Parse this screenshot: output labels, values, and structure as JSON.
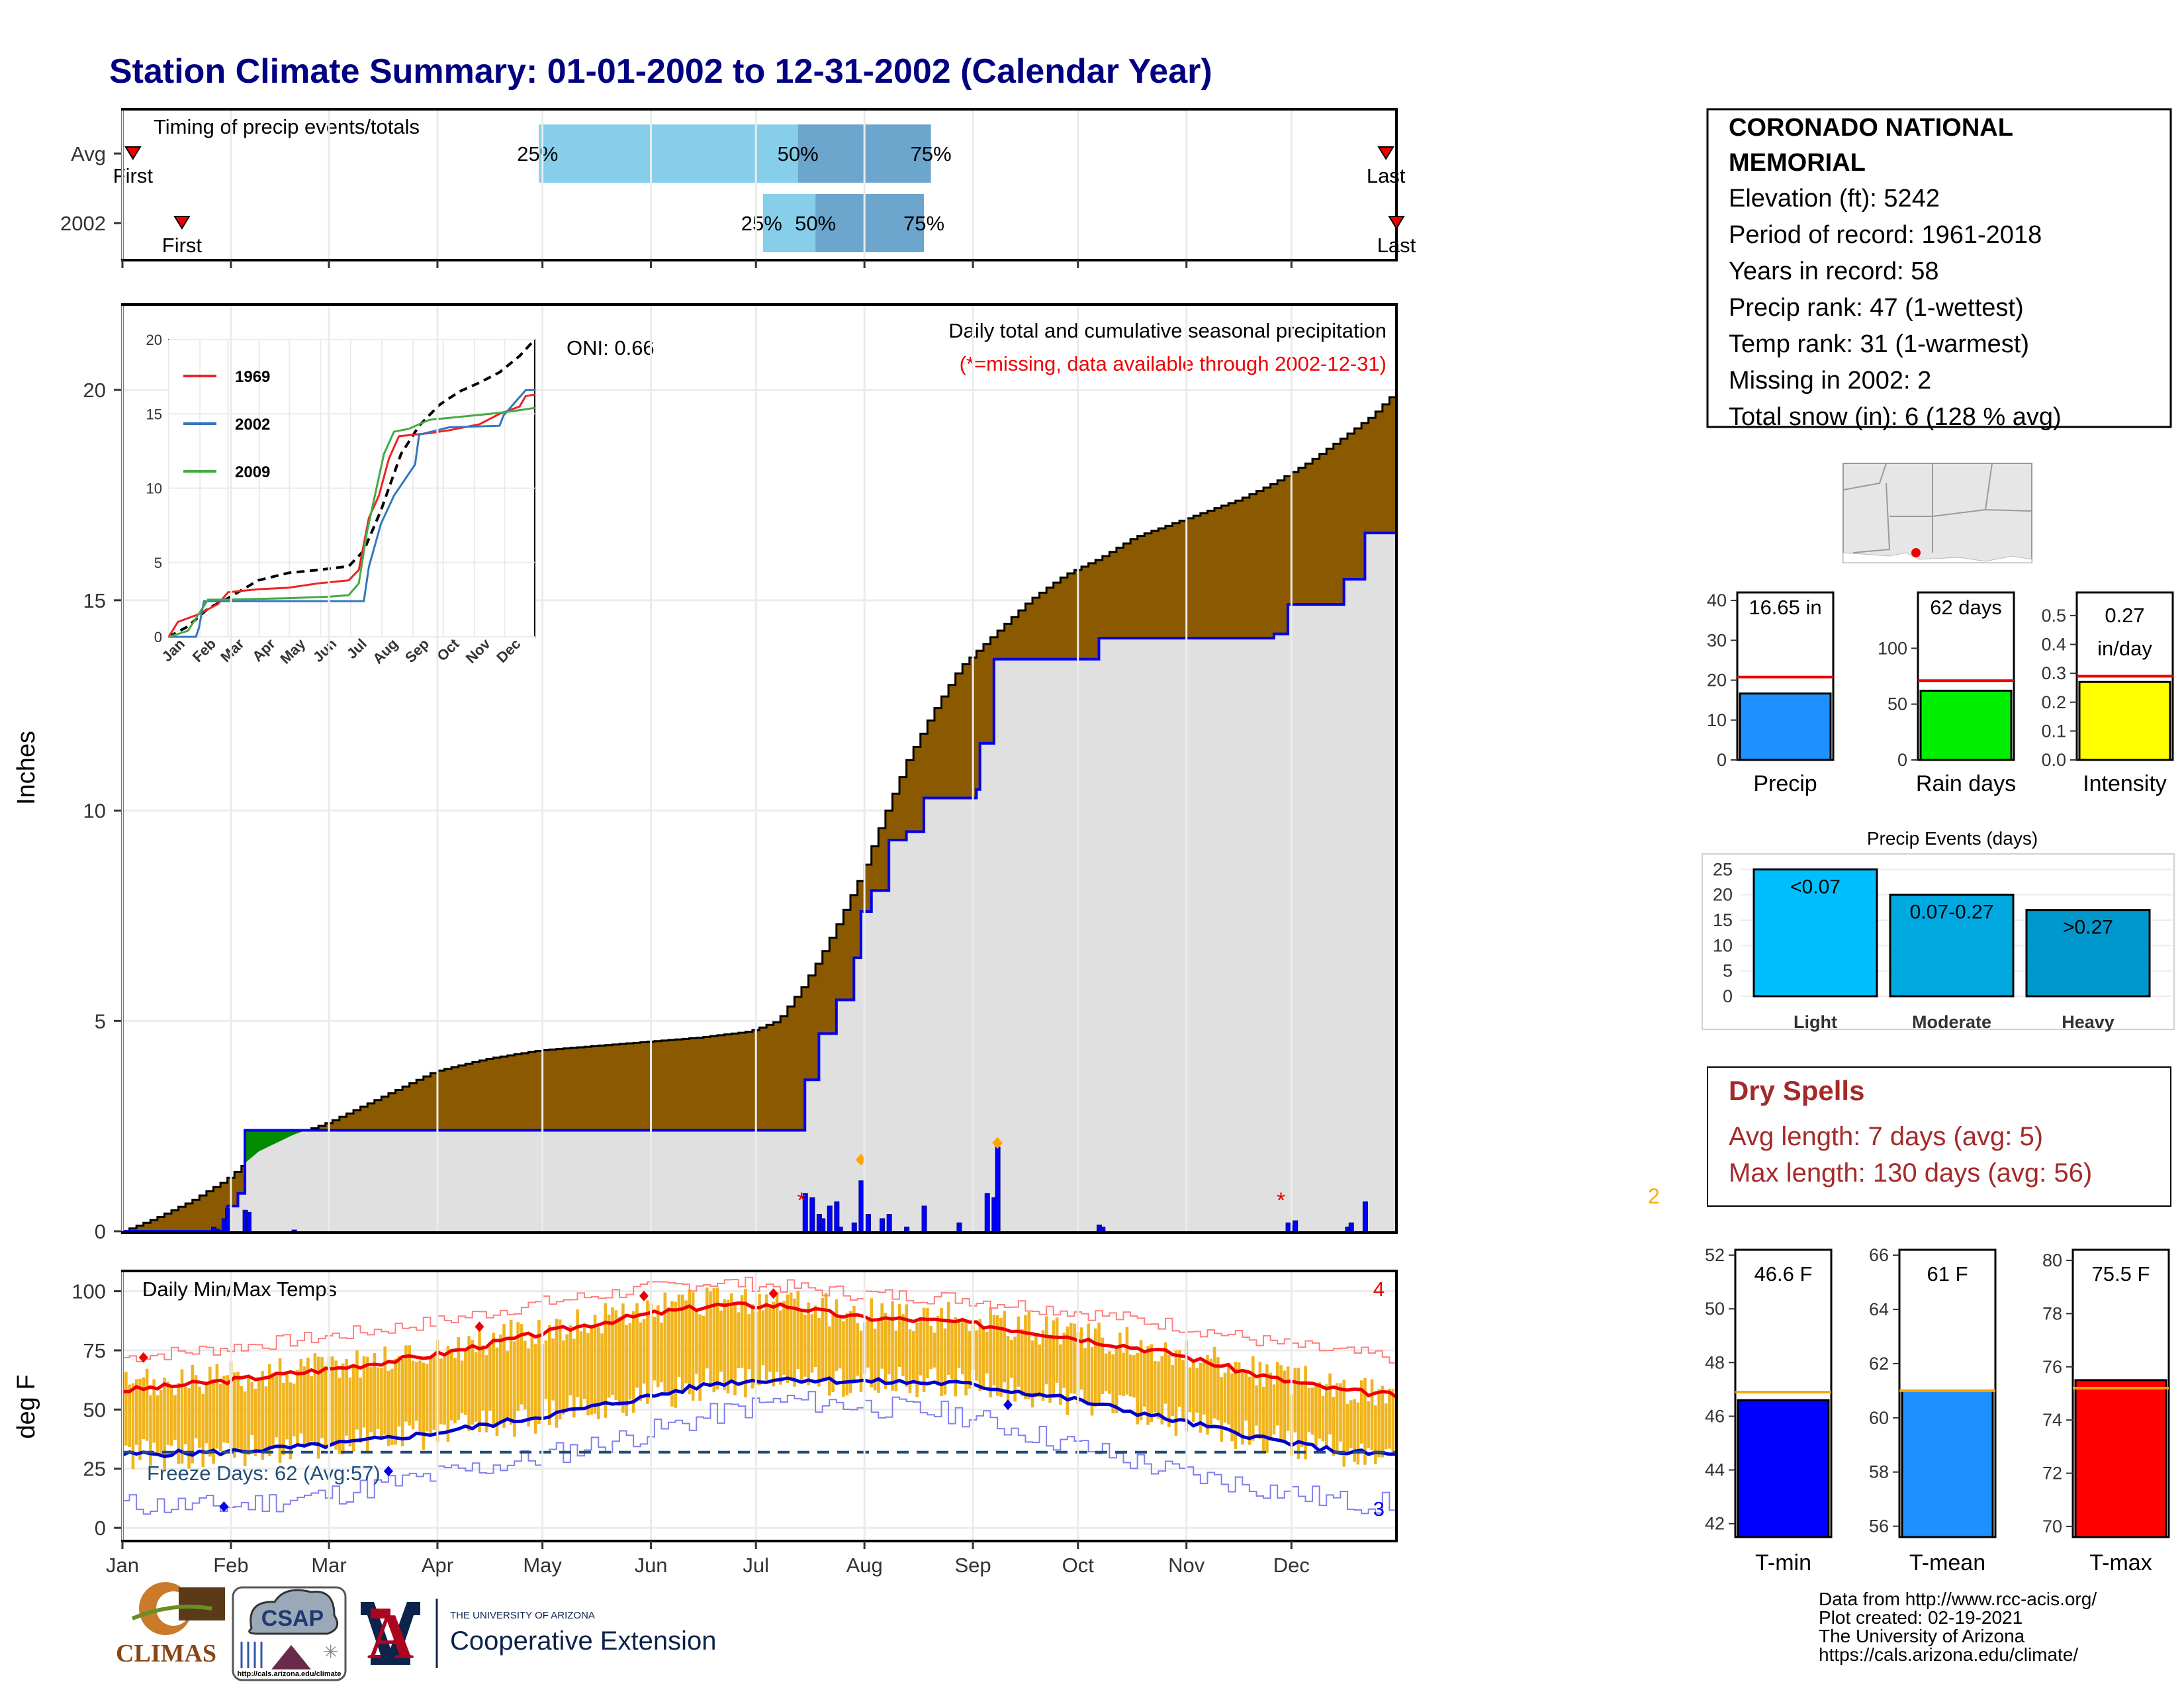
{
  "page": {
    "title": "Station Climate Summary: 01-01-2002 to 12-31-2002 (Calendar Year)"
  },
  "months": [
    "Jan",
    "Feb",
    "Mar",
    "Apr",
    "May",
    "Jun",
    "Jul",
    "Aug",
    "Sep",
    "Oct",
    "Nov",
    "Dec"
  ],
  "timing_panel": {
    "label": "Timing of precip events/totals",
    "rows": [
      {
        "name": "Avg",
        "first_doy": 4,
        "last_doy": 362,
        "p25_doy": 120,
        "p50_doy": 194,
        "p75_doy": 232,
        "labels": {
          "first": "First",
          "last": "Last",
          "p25": "25%",
          "p50": "50%",
          "p75": "75%"
        }
      },
      {
        "name": "2002",
        "first_doy": 18,
        "last_doy": 365,
        "p25_doy": 184,
        "p50_doy": 199,
        "p75_doy": 230,
        "labels": {
          "first": "First",
          "last": "Last",
          "p25": "25%",
          "p50": "50%",
          "p75": "75%"
        }
      }
    ],
    "colors": {
      "light": "#87ceeb",
      "dark": "#6ca6cd",
      "marker": "#ee0000"
    }
  },
  "precip_chart": {
    "type": "area",
    "ylabel": "Inches",
    "ylim": [
      0,
      22
    ],
    "yticks": [
      0,
      5,
      10,
      15,
      20
    ],
    "oni_label": "ONI: 0.66",
    "note_1": "Daily total and cumulative seasonal precipitation",
    "note_2": "(*=missing, data available through 2002-12-31)",
    "missing_markers": [
      {
        "doy": 195,
        "label": "*"
      },
      {
        "doy": 332,
        "label": "*"
      }
    ],
    "missing_count_label": "2",
    "avg_cumulative": [
      [
        1,
        0
      ],
      [
        10,
        0.3
      ],
      [
        20,
        0.7
      ],
      [
        30,
        1.2
      ],
      [
        40,
        1.9
      ],
      [
        50,
        2.3
      ],
      [
        60,
        2.6
      ],
      [
        75,
        3.2
      ],
      [
        90,
        3.8
      ],
      [
        105,
        4.1
      ],
      [
        120,
        4.3
      ],
      [
        135,
        4.4
      ],
      [
        150,
        4.5
      ],
      [
        165,
        4.6
      ],
      [
        180,
        4.75
      ],
      [
        188,
        5.0
      ],
      [
        195,
        5.8
      ],
      [
        200,
        6.5
      ],
      [
        205,
        7.3
      ],
      [
        212,
        8.5
      ],
      [
        218,
        9.8
      ],
      [
        225,
        11.2
      ],
      [
        232,
        12.3
      ],
      [
        240,
        13.4
      ],
      [
        250,
        14.2
      ],
      [
        260,
        15.0
      ],
      [
        270,
        15.6
      ],
      [
        280,
        16.0
      ],
      [
        290,
        16.5
      ],
      [
        300,
        16.8
      ],
      [
        310,
        17.1
      ],
      [
        320,
        17.4
      ],
      [
        330,
        17.8
      ],
      [
        340,
        18.3
      ],
      [
        350,
        18.9
      ],
      [
        358,
        19.4
      ],
      [
        365,
        20.0
      ]
    ],
    "obs_cumulative_2002": [
      [
        1,
        0
      ],
      [
        28,
        0
      ],
      [
        30,
        0.2
      ],
      [
        31,
        0.6
      ],
      [
        34,
        0.9
      ],
      [
        36,
        2.4
      ],
      [
        195,
        2.4
      ],
      [
        196,
        3.6
      ],
      [
        200,
        4.7
      ],
      [
        205,
        5.5
      ],
      [
        210,
        6.5
      ],
      [
        212,
        7.6
      ],
      [
        215,
        8.1
      ],
      [
        220,
        9.3
      ],
      [
        225,
        9.5
      ],
      [
        230,
        10.3
      ],
      [
        245,
        10.5
      ],
      [
        246,
        11.6
      ],
      [
        250,
        13.6
      ],
      [
        280,
        14.1
      ],
      [
        330,
        14.2
      ],
      [
        334,
        14.9
      ],
      [
        350,
        15.5
      ],
      [
        356,
        16.6
      ],
      [
        365,
        16.6
      ]
    ],
    "daily_bars_2002": [
      [
        27,
        0.1
      ],
      [
        28,
        0.05
      ],
      [
        30,
        0.3
      ],
      [
        31,
        0.55
      ],
      [
        36,
        0.5
      ],
      [
        37,
        0.45
      ],
      [
        50,
        0.03
      ],
      [
        196,
        0.9
      ],
      [
        198,
        0.8
      ],
      [
        200,
        0.4
      ],
      [
        201,
        0.3
      ],
      [
        203,
        0.6
      ],
      [
        205,
        0.7
      ],
      [
        206,
        0.1
      ],
      [
        210,
        0.2
      ],
      [
        212,
        1.2
      ],
      [
        214,
        0.4
      ],
      [
        218,
        0.3
      ],
      [
        220,
        0.4
      ],
      [
        225,
        0.1
      ],
      [
        230,
        0.6
      ],
      [
        240,
        0.2
      ],
      [
        248,
        0.9
      ],
      [
        250,
        0.8
      ],
      [
        251,
        2.0
      ],
      [
        280,
        0.15
      ],
      [
        281,
        0.1
      ],
      [
        334,
        0.2
      ],
      [
        335,
        0.15
      ],
      [
        336,
        0.25
      ],
      [
        351,
        0.1
      ],
      [
        352,
        0.2
      ],
      [
        356,
        0.7
      ]
    ],
    "extreme_markers": [
      {
        "doy": 212,
        "value": 1.7
      },
      {
        "doy": 251,
        "value": 2.1
      }
    ],
    "colors": {
      "avg_fill": "#8b5a00",
      "obs_fill": "#e0e0e0",
      "obs_line": "#0000ee",
      "surplus": "#008b00",
      "bars": "#0000ff",
      "diamond": "#ffa500"
    }
  },
  "inset_chart": {
    "type": "line",
    "ylim": [
      0,
      20
    ],
    "yticks": [
      0,
      5,
      10,
      15,
      20
    ],
    "months": [
      "Jan",
      "Feb",
      "Mar",
      "Apr",
      "May",
      "Jun",
      "Jul",
      "Aug",
      "Sep",
      "Oct",
      "Nov",
      "Dec"
    ],
    "series": [
      {
        "name": "1969",
        "color": "#ee2222",
        "points": [
          [
            1,
            0
          ],
          [
            10,
            1.0
          ],
          [
            30,
            1.5
          ],
          [
            50,
            2.2
          ],
          [
            60,
            3.0
          ],
          [
            90,
            3.2
          ],
          [
            120,
            3.3
          ],
          [
            150,
            3.6
          ],
          [
            180,
            3.8
          ],
          [
            190,
            4.5
          ],
          [
            200,
            8.0
          ],
          [
            210,
            9.5
          ],
          [
            220,
            12.0
          ],
          [
            230,
            13.5
          ],
          [
            260,
            13.7
          ],
          [
            280,
            13.9
          ],
          [
            310,
            14.3
          ],
          [
            330,
            15.0
          ],
          [
            350,
            15.5
          ],
          [
            356,
            16.2
          ],
          [
            365,
            16.3
          ]
        ]
      },
      {
        "name": "2002",
        "color": "#3377bb",
        "points": [
          [
            1,
            0
          ],
          [
            28,
            0
          ],
          [
            31,
            0.6
          ],
          [
            36,
            2.4
          ],
          [
            195,
            2.4
          ],
          [
            200,
            4.7
          ],
          [
            212,
            7.6
          ],
          [
            225,
            9.5
          ],
          [
            246,
            11.6
          ],
          [
            250,
            13.6
          ],
          [
            280,
            14.1
          ],
          [
            330,
            14.2
          ],
          [
            334,
            14.9
          ],
          [
            356,
            16.6
          ],
          [
            365,
            16.6
          ]
        ]
      },
      {
        "name": "2009",
        "color": "#44aa44",
        "points": [
          [
            1,
            0
          ],
          [
            20,
            0.4
          ],
          [
            40,
            2.5
          ],
          [
            60,
            2.5
          ],
          [
            120,
            2.6
          ],
          [
            160,
            2.7
          ],
          [
            180,
            2.8
          ],
          [
            190,
            3.6
          ],
          [
            198,
            7.0
          ],
          [
            205,
            9.2
          ],
          [
            215,
            12.3
          ],
          [
            225,
            13.8
          ],
          [
            240,
            14.0
          ],
          [
            260,
            14.6
          ],
          [
            290,
            14.8
          ],
          [
            320,
            15.0
          ],
          [
            345,
            15.2
          ],
          [
            365,
            15.4
          ]
        ]
      }
    ],
    "avg_series": [
      [
        1,
        0
      ],
      [
        20,
        0.7
      ],
      [
        40,
        1.9
      ],
      [
        60,
        2.6
      ],
      [
        90,
        3.8
      ],
      [
        120,
        4.3
      ],
      [
        150,
        4.5
      ],
      [
        180,
        4.75
      ],
      [
        195,
        5.8
      ],
      [
        212,
        8.5
      ],
      [
        232,
        12.3
      ],
      [
        250,
        14.2
      ],
      [
        270,
        15.6
      ],
      [
        290,
        16.5
      ],
      [
        310,
        17.1
      ],
      [
        330,
        17.8
      ],
      [
        350,
        18.9
      ],
      [
        365,
        20.0
      ]
    ]
  },
  "temp_chart": {
    "type": "area",
    "title": "Daily Min/Max Temps",
    "ylabel": "deg F",
    "ylim": [
      -5,
      108
    ],
    "yticks": [
      0,
      25,
      50,
      75,
      100
    ],
    "freeze_line": 32,
    "freeze_label": "Freeze Days: 62 (Avg:57)",
    "hot_count_label": "4",
    "cold_count_label": "3",
    "avg_tmax": [
      [
        1,
        58
      ],
      [
        30,
        62
      ],
      [
        60,
        67
      ],
      [
        90,
        73
      ],
      [
        120,
        82
      ],
      [
        150,
        90
      ],
      [
        170,
        94
      ],
      [
        190,
        94
      ],
      [
        210,
        89
      ],
      [
        240,
        87
      ],
      [
        270,
        81
      ],
      [
        300,
        74
      ],
      [
        330,
        63
      ],
      [
        350,
        58
      ],
      [
        365,
        56
      ]
    ],
    "avg_tmin": [
      [
        1,
        31
      ],
      [
        30,
        32
      ],
      [
        60,
        35
      ],
      [
        90,
        40
      ],
      [
        120,
        47
      ],
      [
        150,
        55
      ],
      [
        170,
        61
      ],
      [
        190,
        63
      ],
      [
        210,
        62
      ],
      [
        240,
        61
      ],
      [
        270,
        55
      ],
      [
        300,
        46
      ],
      [
        330,
        37
      ],
      [
        350,
        32
      ],
      [
        365,
        31
      ]
    ],
    "record_max": [
      [
        1,
        72
      ],
      [
        30,
        76
      ],
      [
        60,
        81
      ],
      [
        90,
        87
      ],
      [
        120,
        95
      ],
      [
        150,
        101
      ],
      [
        170,
        104
      ],
      [
        190,
        102
      ],
      [
        210,
        99
      ],
      [
        240,
        97
      ],
      [
        270,
        92
      ],
      [
        300,
        86
      ],
      [
        330,
        78
      ],
      [
        350,
        74
      ],
      [
        365,
        72
      ]
    ],
    "record_min": [
      [
        1,
        10
      ],
      [
        30,
        9
      ],
      [
        60,
        14
      ],
      [
        90,
        22
      ],
      [
        120,
        30
      ],
      [
        150,
        40
      ],
      [
        170,
        48
      ],
      [
        190,
        54
      ],
      [
        210,
        52
      ],
      [
        240,
        48
      ],
      [
        270,
        36
      ],
      [
        300,
        24
      ],
      [
        330,
        16
      ],
      [
        350,
        11
      ],
      [
        365,
        10
      ]
    ],
    "hot_markers": [
      [
        7,
        72
      ],
      [
        103,
        85
      ],
      [
        150,
        98
      ],
      [
        187,
        99
      ]
    ],
    "cold_markers": [
      [
        30,
        9
      ],
      [
        77,
        24
      ],
      [
        254,
        52
      ]
    ],
    "colors": {
      "bars": "#f0b41e",
      "tmax": "#ee0000",
      "tmin": "#0000cc",
      "rec_max": "#ff8080",
      "rec_min": "#8080ee",
      "freeze": "#1f4e79"
    }
  },
  "station_info": {
    "name": "CORONADO NATIONAL MEMORIAL",
    "lines": [
      "Elevation (ft): 5242",
      "Period of record: 1961-2018",
      "Years in record: 58",
      "Precip rank: 47 (1-wettest)",
      "Temp rank: 31 (1-warmest)",
      "Missing in 2002: 2",
      "Total snow (in): 6 (128 % avg)"
    ]
  },
  "summary_bars": [
    {
      "label": "Precip",
      "value": 16.65,
      "value_text": "16.65 in",
      "avg": 20.8,
      "ylim": [
        0,
        42
      ],
      "yticks": [
        0,
        10,
        20,
        30,
        40
      ],
      "tick_labels": [
        "0",
        "10",
        "20",
        "30",
        "40"
      ],
      "color": "#1e90ff"
    },
    {
      "label": "Rain days",
      "value": 62,
      "value_text": "62 days",
      "avg": 71,
      "ylim": [
        0,
        150
      ],
      "yticks": [
        0,
        50,
        100
      ],
      "tick_labels": [
        "0",
        "50",
        "100"
      ],
      "color": "#00ee00"
    },
    {
      "label": "Intensity",
      "value": 0.27,
      "value_text": "0.27 in/day",
      "avg": 0.29,
      "ylim": [
        0,
        0.58
      ],
      "yticks": [
        0.0,
        0.1,
        0.2,
        0.3,
        0.4,
        0.5
      ],
      "tick_labels": [
        "0.0",
        "0.1",
        "0.2",
        "0.3",
        "0.4",
        "0.5"
      ],
      "color": "#ffff00"
    }
  ],
  "precip_events": {
    "type": "bar",
    "title": "Precip Events (days)",
    "ylim": [
      0,
      27
    ],
    "yticks": [
      0,
      5,
      10,
      15,
      20,
      25
    ],
    "categories": [
      "Light",
      "Moderate",
      "Heavy"
    ],
    "bar_labels": [
      "<0.07",
      "0.07-0.27",
      ">0.27"
    ],
    "values": [
      25,
      20,
      17
    ],
    "colors": [
      "#00bfff",
      "#00a8e0",
      "#0098cc"
    ]
  },
  "dry_spells": {
    "title": "Dry Spells",
    "line1": "Avg length: 7 days (avg: 5)",
    "line2": "Max length: 130 days (avg: 56)"
  },
  "temp_bars": [
    {
      "label": "T-min",
      "value": 46.6,
      "value_text": "46.6 F",
      "avg": 46.9,
      "ylim": [
        41.5,
        52.2
      ],
      "yticks": [
        42,
        44,
        46,
        48,
        50,
        52
      ],
      "color": "#0000ff"
    },
    {
      "label": "T-mean",
      "value": 61.0,
      "value_text": "61 F",
      "avg": 61.0,
      "ylim": [
        55.6,
        66.2
      ],
      "yticks": [
        56,
        58,
        60,
        62,
        64,
        66
      ],
      "color": "#1e90ff"
    },
    {
      "label": "T-max",
      "value": 75.5,
      "value_text": "75.5 F",
      "avg": 75.2,
      "ylim": [
        69.6,
        80.4
      ],
      "yticks": [
        70,
        72,
        74,
        76,
        78,
        80
      ],
      "color": "#ff0000"
    }
  ],
  "footer": {
    "logos": {
      "climas": "CLIMAS",
      "csap": "CSAP",
      "csap_url": "http://cals.arizona.edu/climate",
      "ua_small": "THE UNIVERSITY OF ARIZONA",
      "ua_ext": "Cooperative Extension"
    },
    "credits": [
      "Data from http://www.rcc-acis.org/",
      "Plot created: 02-19-2021",
      "The University of Arizona",
      "https://cals.arizona.edu/climate/"
    ]
  }
}
